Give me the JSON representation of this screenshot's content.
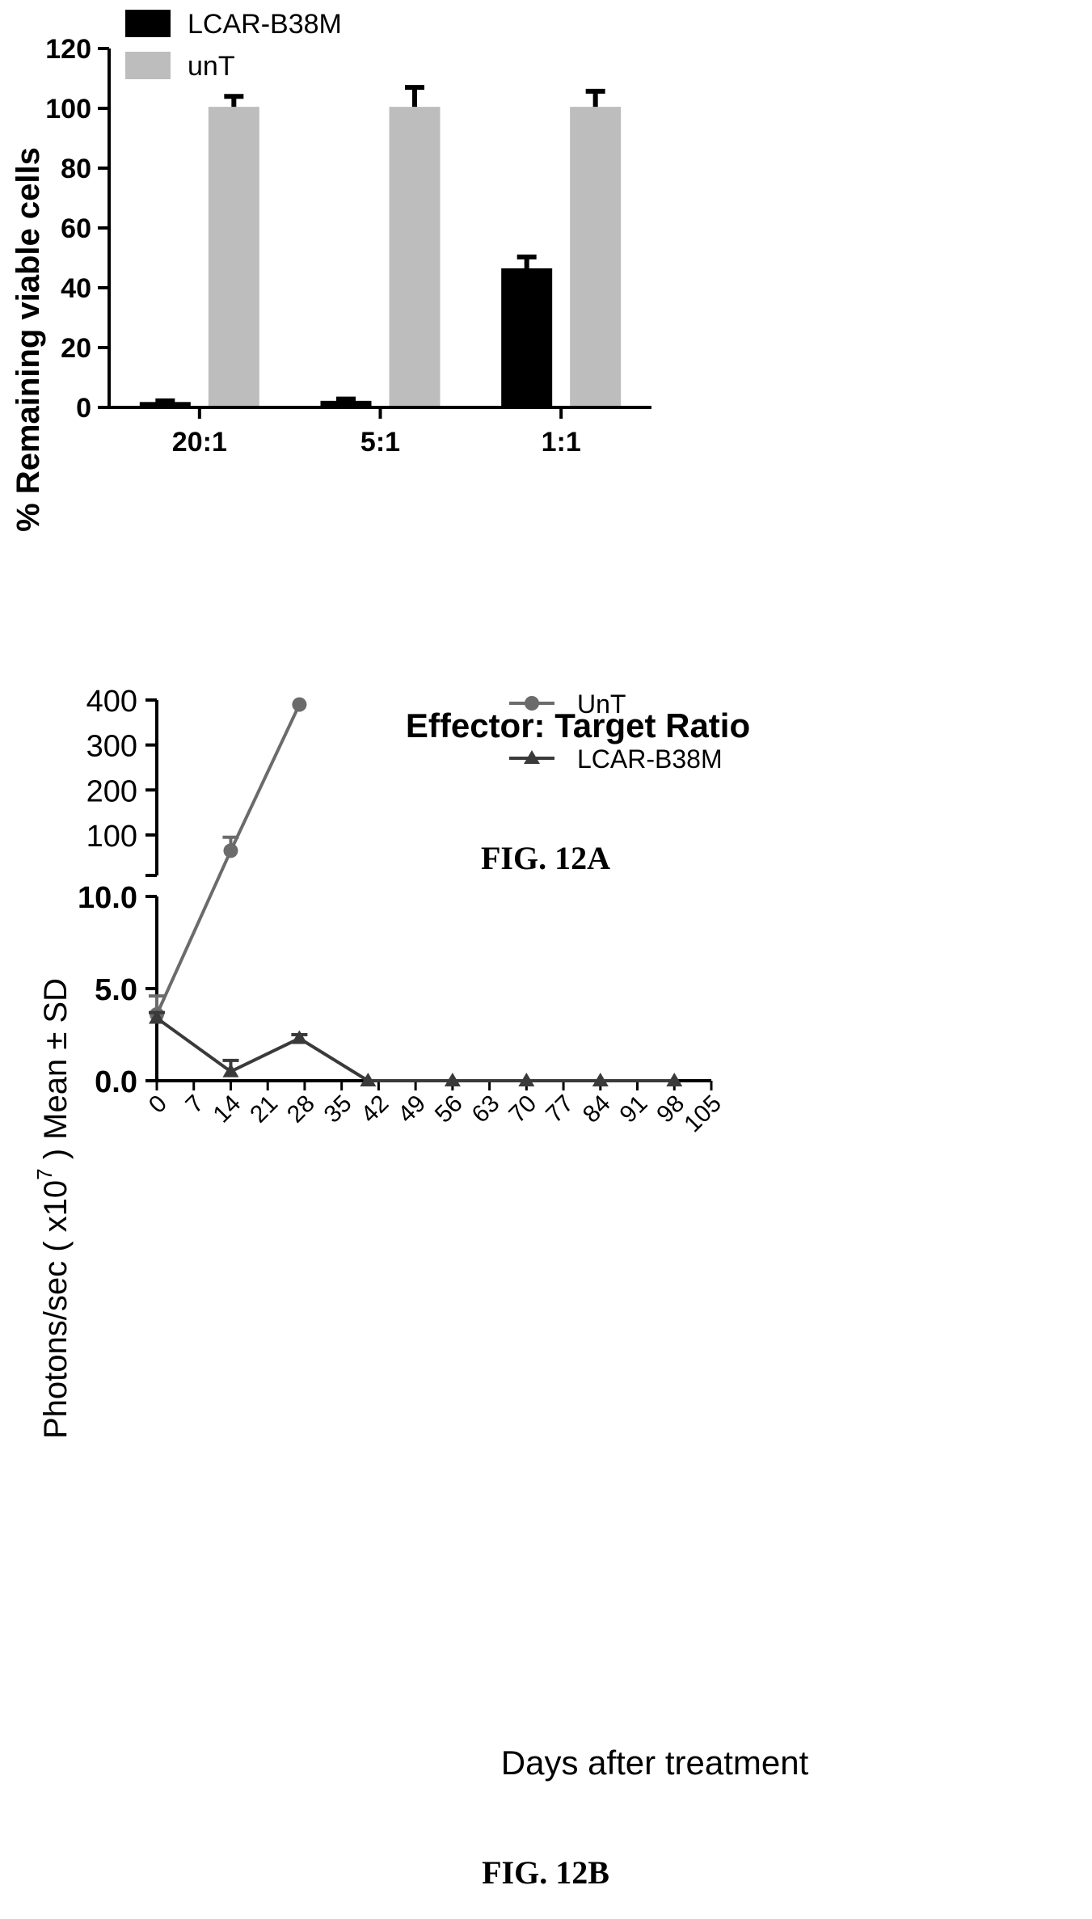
{
  "chart_data": [
    {
      "id": "fig12a",
      "type": "bar",
      "caption": "FIG. 12A",
      "xlabel": "Effector: Target Ratio",
      "ylabel": "% Remaining viable cells",
      "ylim": [
        0,
        120
      ],
      "yticks": [
        "0",
        "20",
        "40",
        "60",
        "80",
        "100",
        "120"
      ],
      "categories": [
        "20:1",
        "5:1",
        "1:1"
      ],
      "legend_position": "top-left",
      "series": [
        {
          "name": "LCAR-B38M",
          "color": "#000000",
          "values": [
            1.8,
            2.2,
            46.5
          ],
          "errors": [
            0.4,
            0.6,
            3.8
          ]
        },
        {
          "name": "unT",
          "color": "#bdbdbd",
          "values": [
            100.5,
            100.5,
            100.5
          ],
          "errors": [
            3.5,
            6.5,
            5.2
          ]
        }
      ]
    },
    {
      "id": "fig12b",
      "type": "line",
      "caption": "FIG. 12B",
      "xlabel": "Days after treatment",
      "ylabel_parts": {
        "prefix": "Photons/sec ( x10",
        "exponent": "7",
        "suffix": " ) Mean ± SD"
      },
      "xlim": [
        0,
        105
      ],
      "xticks": [
        "0",
        "7",
        "14",
        "21",
        "28",
        "35",
        "42",
        "49",
        "56",
        "63",
        "70",
        "77",
        "84",
        "91",
        "98",
        "105"
      ],
      "y_axis_break": {
        "lower": [
          0,
          10
        ],
        "upper": [
          10,
          400
        ]
      },
      "yticks_lower": [
        "0.0",
        "5.0",
        "10.0"
      ],
      "yticks_upper": [
        "100",
        "200",
        "300",
        "400"
      ],
      "legend_position": "top-right",
      "series": [
        {
          "name": "UnT",
          "marker": "circle",
          "color": "#6b6b6b",
          "x": [
            0,
            14,
            27
          ],
          "y": [
            3.6,
            65,
            390
          ],
          "yerr": [
            1.0,
            30,
            0
          ]
        },
        {
          "name": "LCAR-B38M",
          "marker": "triangle",
          "color": "#3a3a3a",
          "x": [
            0,
            14,
            27,
            40,
            56,
            70,
            84,
            98
          ],
          "y": [
            3.4,
            0.5,
            2.3,
            0.0,
            0.0,
            0.0,
            0.0,
            0.0
          ],
          "yerr": [
            0.3,
            0.6,
            0.2,
            0,
            0,
            0,
            0,
            0
          ]
        }
      ]
    }
  ]
}
